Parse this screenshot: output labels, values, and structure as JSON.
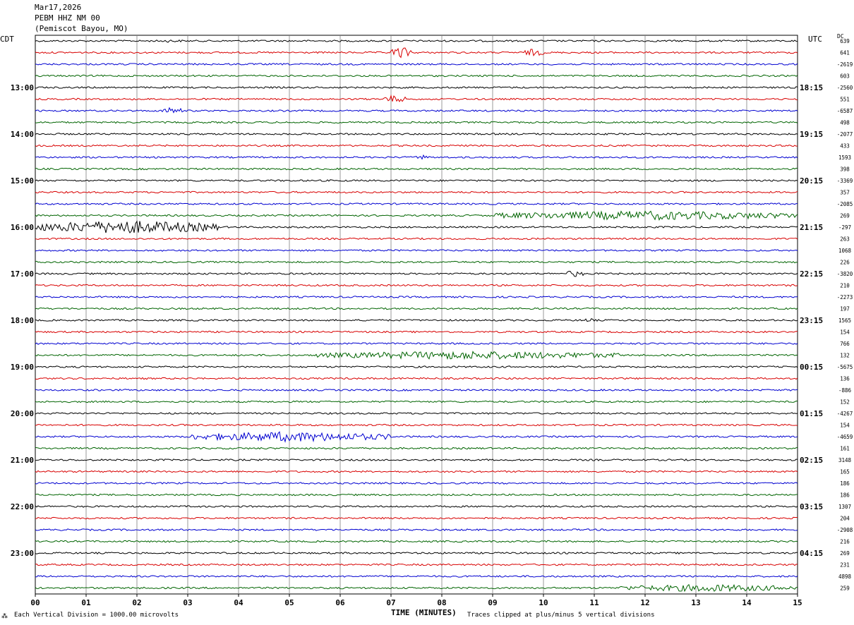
{
  "header": {
    "date": "Mar17,2026",
    "station": "PEBM HHZ NM 00",
    "location": "(Pemiscot Bayou, MO)"
  },
  "corner_labels": {
    "left": "CDT",
    "right": "UTC",
    "dc": "DC"
  },
  "footer": {
    "scale_note": "Each Vertical Division = 1000.00 microvolts",
    "clip_note": "Traces clipped at plus/minus 5 vertical divisions",
    "logo_mark": "⁂"
  },
  "colors": {
    "trace_cycle": [
      "#000000",
      "#d80000",
      "#0000d0",
      "#006400"
    ],
    "grid": "#808080"
  },
  "chart_data": {
    "type": "line",
    "title": "Mar17,2026 PEBM HHZ NM 00 (Pemiscot Bayou, MO)",
    "xlabel": "TIME (MINUTES)",
    "xlim": [
      0,
      15
    ],
    "x_ticks": [
      "00",
      "01",
      "02",
      "03",
      "04",
      "05",
      "06",
      "07",
      "08",
      "09",
      "10",
      "11",
      "12",
      "13",
      "14",
      "15"
    ],
    "trace_minutes": 15,
    "trace_count": 48,
    "left_time_labels": [
      {
        "trace": 4,
        "label": "13:00"
      },
      {
        "trace": 8,
        "label": "14:00"
      },
      {
        "trace": 12,
        "label": "15:00"
      },
      {
        "trace": 16,
        "label": "16:00"
      },
      {
        "trace": 20,
        "label": "17:00"
      },
      {
        "trace": 24,
        "label": "18:00"
      },
      {
        "trace": 28,
        "label": "19:00"
      },
      {
        "trace": 32,
        "label": "20:00"
      },
      {
        "trace": 36,
        "label": "21:00"
      },
      {
        "trace": 40,
        "label": "22:00"
      },
      {
        "trace": 44,
        "label": "23:00"
      }
    ],
    "right_time_labels": [
      {
        "trace": 4,
        "label": "18:15"
      },
      {
        "trace": 8,
        "label": "19:15"
      },
      {
        "trace": 12,
        "label": "20:15"
      },
      {
        "trace": 16,
        "label": "21:15"
      },
      {
        "trace": 20,
        "label": "22:15"
      },
      {
        "trace": 24,
        "label": "23:15"
      },
      {
        "trace": 28,
        "label": "00:15"
      },
      {
        "trace": 32,
        "label": "01:15"
      },
      {
        "trace": 36,
        "label": "02:15"
      },
      {
        "trace": 40,
        "label": "03:15"
      },
      {
        "trace": 44,
        "label": "04:15"
      }
    ],
    "dc_offsets": [
      "639",
      "641",
      "-2619",
      "603",
      "-2560",
      "551",
      "-6587",
      "498",
      "-2077",
      "433",
      "1593",
      "398",
      "-3369",
      "357",
      "-2085",
      "269",
      "-297",
      "263",
      "1068",
      "226",
      "-3820",
      "210",
      "-2273",
      "197",
      "1565",
      "154",
      "766",
      "132",
      "-5675",
      "136",
      "-886",
      "152",
      "-4267",
      "154",
      "-4659",
      "161",
      "3148",
      "165",
      "186",
      "186",
      "1307",
      "204",
      "-2908",
      "216",
      "269",
      "231",
      "4898",
      "259"
    ],
    "events": [
      {
        "trace": 0,
        "start_min": 2.3,
        "end_min": 3.0,
        "amp": 0.35
      },
      {
        "trace": 1,
        "start_min": 7.0,
        "end_min": 7.4,
        "amp": 1.4
      },
      {
        "trace": 1,
        "start_min": 9.6,
        "end_min": 10.0,
        "amp": 0.9
      },
      {
        "trace": 5,
        "start_min": 6.8,
        "end_min": 7.3,
        "amp": 0.9
      },
      {
        "trace": 6,
        "start_min": 2.5,
        "end_min": 2.9,
        "amp": 0.9
      },
      {
        "trace": 10,
        "start_min": 7.5,
        "end_min": 7.7,
        "amp": 0.7
      },
      {
        "trace": 15,
        "start_min": 9.0,
        "end_min": 15.0,
        "amp": 1.1
      },
      {
        "trace": 16,
        "start_min": 0.0,
        "end_min": 3.6,
        "amp": 1.6
      },
      {
        "trace": 20,
        "start_min": 10.4,
        "end_min": 10.8,
        "amp": 0.8
      },
      {
        "trace": 24,
        "start_min": 10.8,
        "end_min": 11.0,
        "amp": 0.6
      },
      {
        "trace": 27,
        "start_min": 5.5,
        "end_min": 11.5,
        "amp": 1.0
      },
      {
        "trace": 34,
        "start_min": 3.0,
        "end_min": 7.0,
        "amp": 1.2
      },
      {
        "trace": 47,
        "start_min": 11.5,
        "end_min": 15.0,
        "amp": 0.9
      }
    ]
  }
}
